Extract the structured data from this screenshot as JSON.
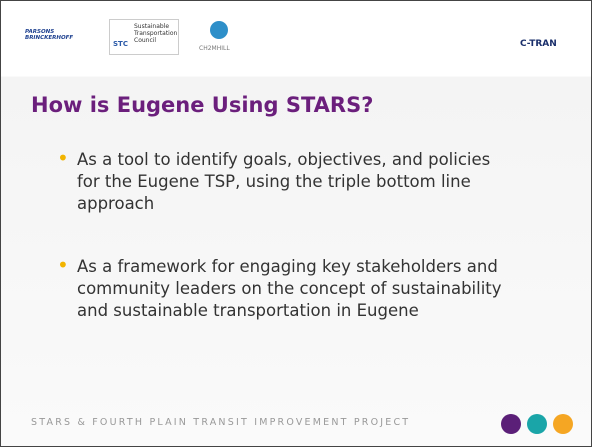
{
  "header": {
    "logos": [
      "PARSONS BRINCKERHOFF",
      "STC",
      "Sustainable Transportation Council",
      "CH2MHILL",
      "C-TRAN"
    ]
  },
  "title": "How is Eugene Using STARS?",
  "bullets": [
    "As a tool to identify goals, objectives, and policies for the Eugene TSP, using the triple bottom line approach",
    "As a framework for engaging key stakeholders and community leaders on the concept of sustainability and sustainable transportation in Eugene"
  ],
  "footer": "STARS & FOURTH PLAIN TRANSIT IMPROVEMENT PROJECT"
}
